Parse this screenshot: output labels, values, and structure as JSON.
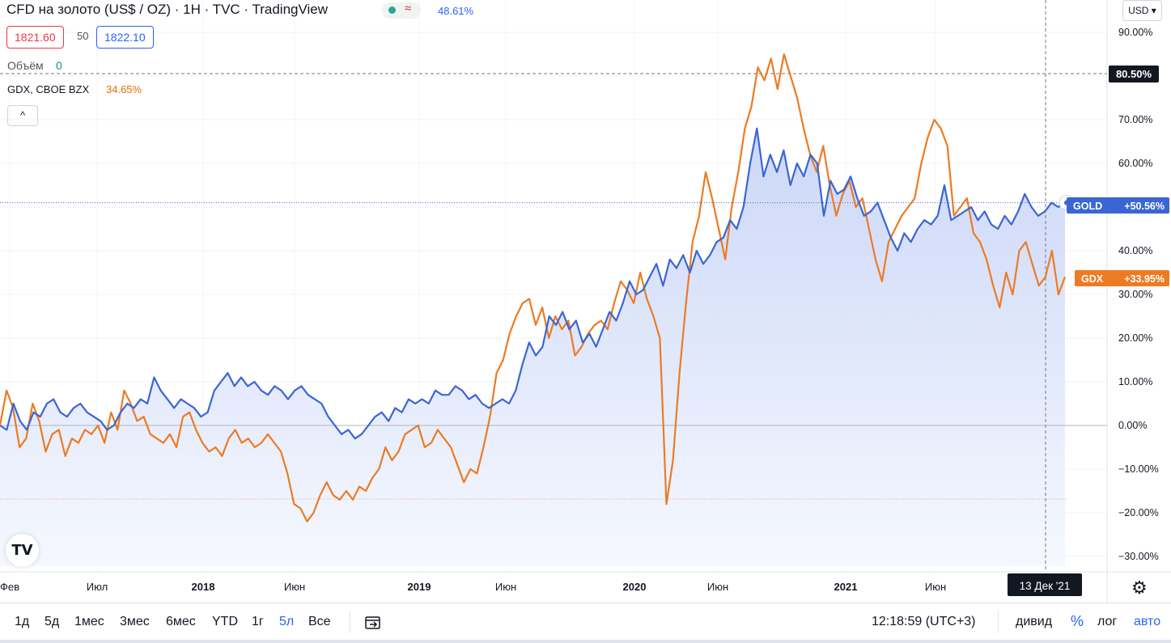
{
  "header": {
    "title": "CFD на золото (US$ / OZ) · 1H · TVC · TradingView",
    "status_icon": "wave-icon",
    "status_wave": "≈",
    "change_pct": "48.61%"
  },
  "prices": {
    "bid": "1821.60",
    "spread": "50",
    "ask": "1822.10"
  },
  "volume": {
    "label": "Объём",
    "value": "0"
  },
  "compare": {
    "label": "GDX, CBOE BZX",
    "value": "34.65%"
  },
  "controls": {
    "collapse": "^",
    "currency": "USD ▾",
    "logo": "TV",
    "settings": "⚙"
  },
  "colors": {
    "gold": "#3a66d4",
    "gdx": "#ec7b24",
    "area_top": "#c6d3f7",
    "area_bottom": "#f4f7fe"
  },
  "timeframes": {
    "items": [
      "1д",
      "5д",
      "1мес",
      "3мес",
      "6мес",
      "YTD",
      "1г",
      "5л",
      "Все"
    ],
    "active": "5л",
    "time": "12:18:59 (UTC+3)",
    "right": [
      "дивид",
      "%",
      "лог",
      "авто"
    ]
  },
  "chart_data": {
    "type": "line",
    "x_ticks": [
      "Фев",
      "Июл",
      "2018",
      "Июн",
      "2019",
      "Июн",
      "2020",
      "Июн",
      "2021",
      "Июн"
    ],
    "y_ticks": [
      "90.00%",
      "80.00%",
      "70.00%",
      "60.00%",
      "50.00%",
      "40.00%",
      "30.00%",
      "20.00%",
      "10.00%",
      "0.00%",
      "−10.00%",
      "−20.00%",
      "−30.00%"
    ],
    "ylim": [
      -30,
      90
    ],
    "y_unit": "%",
    "crosshair": {
      "value": "80.50%",
      "date": "13 Дек '21"
    },
    "series": [
      {
        "name": "GOLD",
        "label": "+50.56%",
        "values": [
          0,
          -1,
          5,
          1,
          -1,
          3,
          2,
          5,
          6,
          3,
          2,
          4,
          5,
          3,
          2,
          1,
          -1,
          0,
          3,
          5,
          4,
          6,
          5,
          11,
          8,
          6,
          4,
          6,
          5,
          4,
          2,
          3,
          8,
          10,
          12,
          9,
          11,
          9,
          10,
          8,
          7,
          9,
          8,
          6,
          8,
          9,
          7,
          6,
          5,
          2,
          0,
          -2,
          -1,
          -3,
          -2,
          0,
          2,
          3,
          1,
          4,
          3,
          6,
          5,
          6,
          5,
          8,
          7,
          7,
          9,
          8,
          6,
          7,
          5,
          4,
          5,
          6,
          5,
          8,
          14,
          19,
          16,
          18,
          25,
          23,
          26,
          22,
          24,
          19,
          21,
          18,
          22,
          26,
          24,
          28,
          33,
          30,
          31,
          34,
          37,
          32,
          38,
          36,
          39,
          35,
          40,
          37,
          39,
          42,
          43,
          47,
          45,
          50,
          60,
          68,
          57,
          62,
          58,
          63,
          55,
          60,
          57,
          62,
          60,
          48,
          56,
          53,
          54,
          57,
          52,
          48,
          49,
          51,
          47,
          43,
          40,
          44,
          42,
          45,
          47,
          46,
          48,
          55,
          47,
          48,
          49,
          50,
          47,
          49,
          46,
          45,
          48,
          46,
          49,
          53,
          50,
          48,
          49,
          51,
          50,
          51
        ],
        "colour": "#3a66d4"
      },
      {
        "name": "GDX",
        "label": "+33.95%",
        "values": [
          0,
          8,
          4,
          -5,
          -3,
          5,
          1,
          -6,
          -2,
          -1,
          -7,
          -3,
          -4,
          -1,
          -2,
          0,
          -4,
          3,
          -1,
          8,
          5,
          1,
          2,
          -2,
          -3,
          -4,
          -2,
          -5,
          2,
          3,
          -1,
          -4,
          -6,
          -5,
          -7,
          -3,
          -1,
          -4,
          -3,
          -5,
          -4,
          -2,
          -4,
          -6,
          -11,
          -18,
          -19,
          -22,
          -20,
          -16,
          -13,
          -16,
          -17,
          -15,
          -17,
          -14,
          -15,
          -12,
          -10,
          -5,
          -8,
          -6,
          -2,
          -1,
          0,
          -5,
          -4,
          -1,
          -3,
          -5,
          -9,
          -13,
          -10,
          -11,
          -5,
          2,
          12,
          15,
          21,
          25,
          28,
          29,
          23,
          27,
          20,
          25,
          22,
          24,
          16,
          18,
          21,
          23,
          24,
          22,
          28,
          33,
          31,
          28,
          35,
          29,
          25,
          20,
          -18,
          -8,
          12,
          28,
          42,
          48,
          58,
          52,
          45,
          38,
          50,
          58,
          68,
          73,
          82,
          79,
          84,
          77,
          85,
          80,
          75,
          68,
          62,
          58,
          64,
          55,
          48,
          53,
          56,
          50,
          52,
          45,
          38,
          33,
          42,
          45,
          48,
          50,
          52,
          60,
          66,
          70,
          68,
          64,
          48,
          50,
          52,
          44,
          42,
          38,
          32,
          27,
          35,
          30,
          40,
          42,
          37,
          32,
          34,
          40,
          30,
          34
        ],
        "colour": "#ec7b24"
      }
    ]
  }
}
